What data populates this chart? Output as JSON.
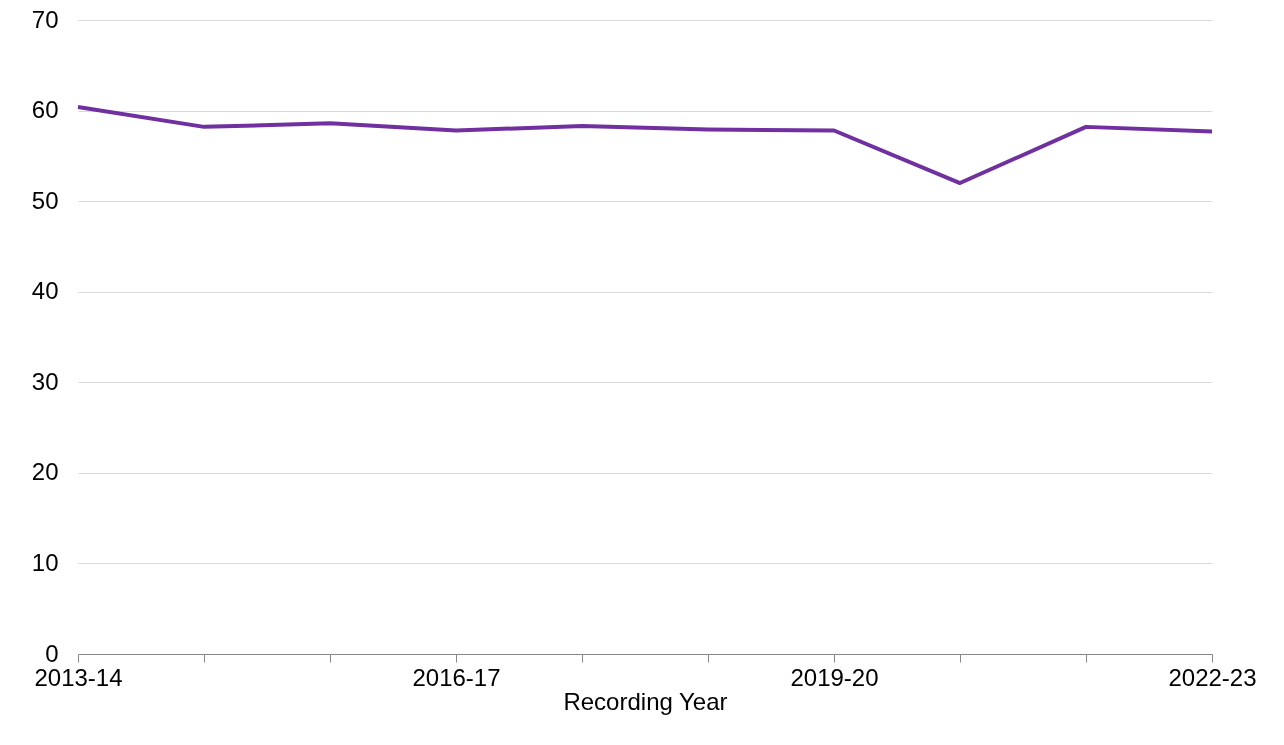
{
  "chart_data": {
    "type": "line",
    "xlabel": "Recording Year",
    "categories": [
      "2013-14",
      null,
      null,
      "2016-17",
      null,
      null,
      "2019-20",
      null,
      null,
      "2022-23"
    ],
    "series": [
      {
        "color": "#7030a0",
        "values": [
          60.4,
          58.2,
          58.6,
          57.8,
          58.3,
          57.9,
          57.8,
          52.0,
          58.2,
          57.7
        ]
      }
    ],
    "ylim": [
      0,
      70
    ],
    "yticks": [
      0,
      10,
      20,
      30,
      40,
      50,
      60,
      70
    ],
    "grid": "y",
    "legend": false,
    "marker": "none",
    "line_style": "solid"
  }
}
